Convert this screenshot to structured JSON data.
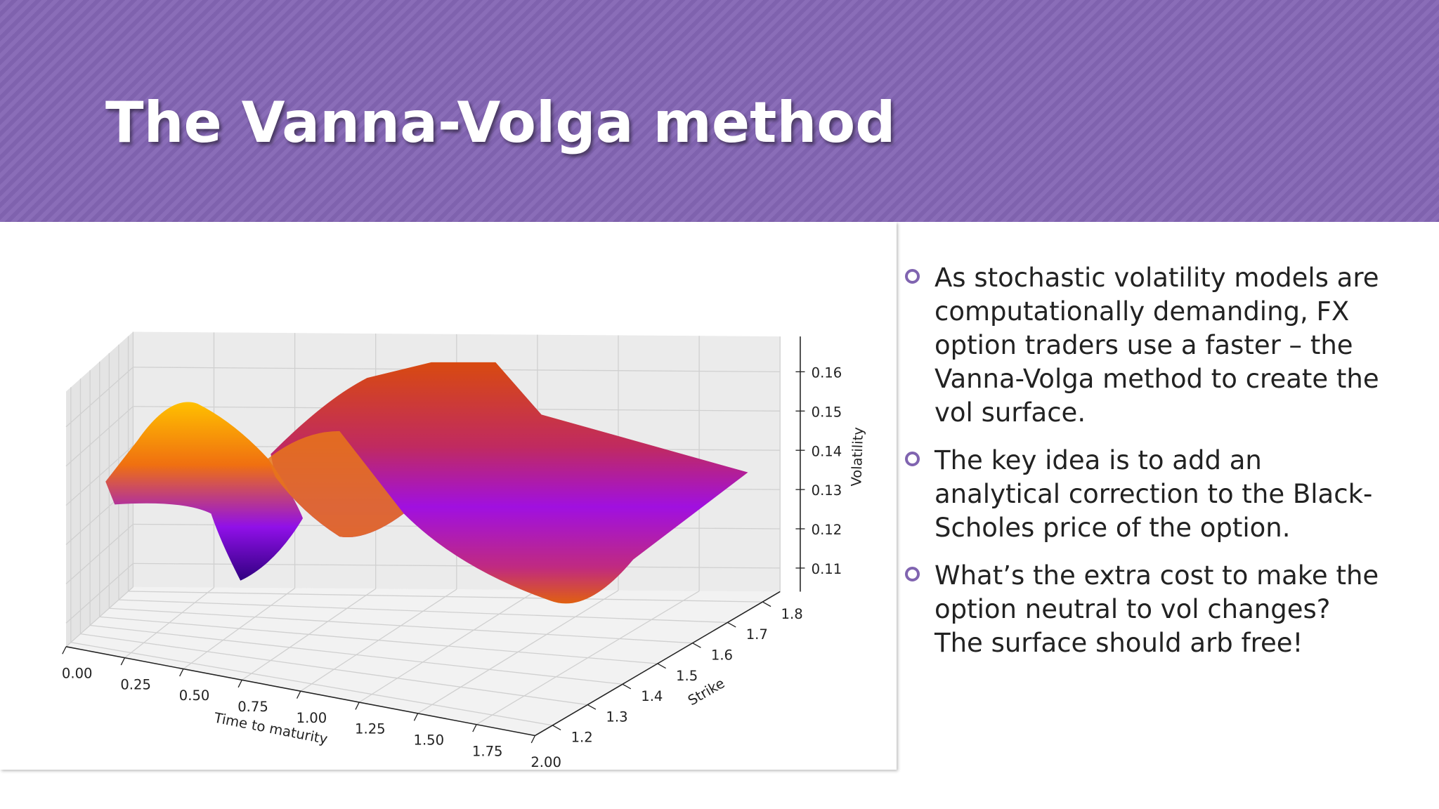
{
  "header": {
    "title": "The Vanna-Volga method"
  },
  "chart_data": {
    "type": "surface3d",
    "xlabel": "Time to maturity",
    "ylabel": "Strike",
    "zlabel": "Volatility",
    "xlim": [
      0,
      2
    ],
    "ylim": [
      1.15,
      1.85
    ],
    "zlim": [
      0.104,
      0.169
    ],
    "xticks": [
      {
        "value": 0,
        "label": "0.00"
      },
      0.25,
      {
        "value": 0.5,
        "label": "0.50"
      },
      0.75,
      {
        "value": 1,
        "label": "1.00"
      },
      1.25,
      {
        "value": 1.5,
        "label": "1.50"
      },
      1.75,
      {
        "value": 2,
        "label": "2.00"
      }
    ],
    "yticks": [
      1.2,
      1.3,
      1.4,
      1.5,
      1.6,
      1.7,
      1.8
    ],
    "zticks": [
      0.11,
      0.12,
      0.13,
      0.14,
      0.15,
      0.16
    ],
    "grid": true
  },
  "bullets": [
    "As stochastic volatility models are computationally demanding, FX option traders use a faster – the Vanna-Volga method to create the vol surface.",
    "The key idea is to add an analytical correction to the Black-Scholes price of the option.",
    "What’s the extra cost to make the option neutral to vol changes? The surface should arb free!"
  ]
}
